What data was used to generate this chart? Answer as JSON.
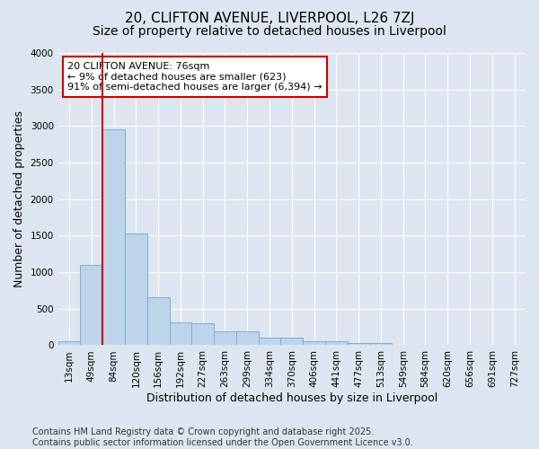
{
  "title": "20, CLIFTON AVENUE, LIVERPOOL, L26 7ZJ",
  "subtitle": "Size of property relative to detached houses in Liverpool",
  "xlabel": "Distribution of detached houses by size in Liverpool",
  "ylabel": "Number of detached properties",
  "bar_labels": [
    "13sqm",
    "49sqm",
    "84sqm",
    "120sqm",
    "156sqm",
    "192sqm",
    "227sqm",
    "263sqm",
    "299sqm",
    "334sqm",
    "370sqm",
    "406sqm",
    "441sqm",
    "477sqm",
    "513sqm",
    "549sqm",
    "584sqm",
    "620sqm",
    "656sqm",
    "691sqm",
    "727sqm"
  ],
  "bar_values": [
    60,
    1100,
    2950,
    1530,
    660,
    310,
    300,
    185,
    185,
    100,
    100,
    55,
    50,
    30,
    25,
    10,
    8,
    5,
    0,
    0,
    0
  ],
  "bar_color": "#bdd4ea",
  "bar_edge_color": "#7aaed6",
  "ylim": [
    0,
    4000
  ],
  "yticks": [
    0,
    500,
    1000,
    1500,
    2000,
    2500,
    3000,
    3500,
    4000
  ],
  "vline_x": 1.5,
  "annotation_text": "20 CLIFTON AVENUE: 76sqm\n← 9% of detached houses are smaller (623)\n91% of semi-detached houses are larger (6,394) →",
  "annotation_box_color": "#ffffff",
  "annotation_box_edge": "#cc0000",
  "vline_color": "#cc0000",
  "footer_text": "Contains HM Land Registry data © Crown copyright and database right 2025.\nContains public sector information licensed under the Open Government Licence v3.0.",
  "bg_color": "#dde6f0",
  "plot_bg_color": "#dde6f0",
  "title_fontsize": 11,
  "subtitle_fontsize": 10,
  "axis_label_fontsize": 9,
  "tick_fontsize": 7.5,
  "annotation_fontsize": 8,
  "footer_fontsize": 7
}
